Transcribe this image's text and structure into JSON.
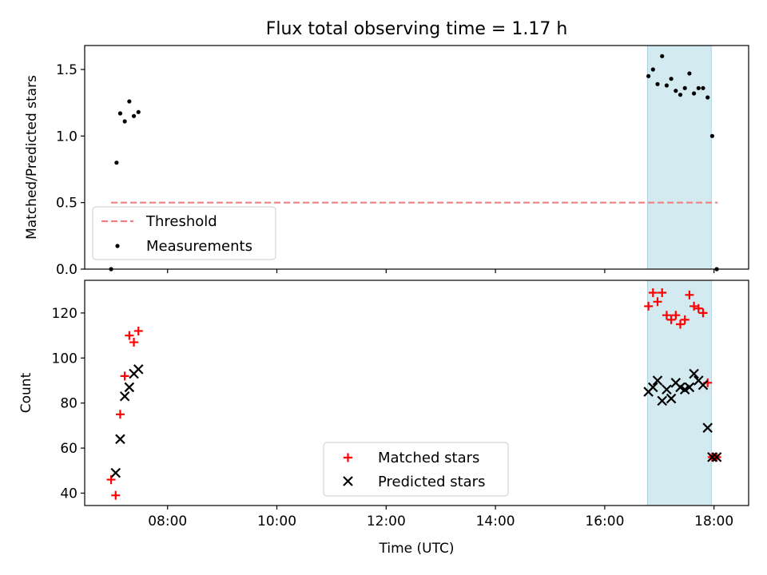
{
  "chart_data": [
    {
      "type": "scatter",
      "title": "Flux total observing time = 1.17 h",
      "xlabel": "",
      "ylabel": "Matched/Predicted stars",
      "xlim": [
        "06:29",
        "18:38"
      ],
      "ylim": [
        0,
        1.68
      ],
      "yticks": [
        0.0,
        0.5,
        1.0,
        1.5
      ],
      "ytick_labels": [
        "0.0",
        "0.5",
        "1.0",
        "1.5"
      ],
      "legend_position": "bottom-left",
      "grid": false,
      "highlight_band": {
        "x_start": "16:47",
        "x_end": "17:57",
        "color": "#d3eaf1"
      },
      "threshold": {
        "name": "Threshold",
        "y": 0.5,
        "x_start": "06:58",
        "x_end": "18:04",
        "color": "#f08080",
        "style": "dashed"
      },
      "series": [
        {
          "name": "Measurements",
          "marker": "dot",
          "color": "#000000",
          "points": [
            {
              "x": "06:58",
              "y": 0.0
            },
            {
              "x": "07:04",
              "y": 0.8
            },
            {
              "x": "07:08",
              "y": 1.17
            },
            {
              "x": "07:13",
              "y": 1.11
            },
            {
              "x": "07:18",
              "y": 1.26
            },
            {
              "x": "07:23",
              "y": 1.15
            },
            {
              "x": "07:28",
              "y": 1.18
            },
            {
              "x": "16:48",
              "y": 1.45
            },
            {
              "x": "16:53",
              "y": 1.5
            },
            {
              "x": "16:58",
              "y": 1.39
            },
            {
              "x": "17:03",
              "y": 1.6
            },
            {
              "x": "17:08",
              "y": 1.38
            },
            {
              "x": "17:13",
              "y": 1.43
            },
            {
              "x": "17:18",
              "y": 1.34
            },
            {
              "x": "17:23",
              "y": 1.31
            },
            {
              "x": "17:28",
              "y": 1.36
            },
            {
              "x": "17:33",
              "y": 1.47
            },
            {
              "x": "17:38",
              "y": 1.32
            },
            {
              "x": "17:43",
              "y": 1.36
            },
            {
              "x": "17:48",
              "y": 1.36
            },
            {
              "x": "17:53",
              "y": 1.29
            },
            {
              "x": "17:58",
              "y": 1.0
            },
            {
              "x": "18:03",
              "y": 0.0
            }
          ]
        }
      ],
      "legend": [
        "Threshold",
        "Measurements"
      ]
    },
    {
      "type": "scatter",
      "title": "",
      "xlabel": "Time (UTC)",
      "ylabel": "Count",
      "xlim": [
        "06:29",
        "18:38"
      ],
      "ylim": [
        34.5,
        134.5
      ],
      "yticks": [
        40,
        60,
        80,
        100,
        120
      ],
      "ytick_labels": [
        "40",
        "60",
        "80",
        "100",
        "120"
      ],
      "xticks": [
        "08:00",
        "10:00",
        "12:00",
        "14:00",
        "16:00",
        "18:00"
      ],
      "xtick_labels": [
        "08:00",
        "10:00",
        "12:00",
        "14:00",
        "16:00",
        "18:00"
      ],
      "legend_position": "lower-center",
      "grid": false,
      "highlight_band": {
        "x_start": "16:47",
        "x_end": "17:57",
        "color": "#d3eaf1"
      },
      "series": [
        {
          "name": "Matched stars",
          "marker": "plus",
          "color": "#ff0000",
          "points": [
            {
              "x": "06:58",
              "y": 46
            },
            {
              "x": "07:03",
              "y": 39
            },
            {
              "x": "07:08",
              "y": 75
            },
            {
              "x": "07:13",
              "y": 92
            },
            {
              "x": "07:18",
              "y": 110
            },
            {
              "x": "07:23",
              "y": 107
            },
            {
              "x": "07:28",
              "y": 112
            },
            {
              "x": "16:48",
              "y": 123
            },
            {
              "x": "16:53",
              "y": 129
            },
            {
              "x": "16:58",
              "y": 125
            },
            {
              "x": "17:03",
              "y": 129
            },
            {
              "x": "17:08",
              "y": 119
            },
            {
              "x": "17:13",
              "y": 117
            },
            {
              "x": "17:18",
              "y": 119
            },
            {
              "x": "17:23",
              "y": 115
            },
            {
              "x": "17:28",
              "y": 117
            },
            {
              "x": "17:33",
              "y": 128
            },
            {
              "x": "17:38",
              "y": 123
            },
            {
              "x": "17:43",
              "y": 122
            },
            {
              "x": "17:48",
              "y": 120
            },
            {
              "x": "17:53",
              "y": 89
            },
            {
              "x": "17:58",
              "y": 56
            },
            {
              "x": "18:03",
              "y": 56
            }
          ]
        },
        {
          "name": "Predicted stars",
          "marker": "x",
          "color": "#000000",
          "points": [
            {
              "x": "07:03",
              "y": 49
            },
            {
              "x": "07:08",
              "y": 64
            },
            {
              "x": "07:13",
              "y": 83
            },
            {
              "x": "07:18",
              "y": 87
            },
            {
              "x": "07:23",
              "y": 93
            },
            {
              "x": "07:28",
              "y": 95
            },
            {
              "x": "16:48",
              "y": 85
            },
            {
              "x": "16:53",
              "y": 87
            },
            {
              "x": "16:58",
              "y": 90
            },
            {
              "x": "17:03",
              "y": 81
            },
            {
              "x": "17:08",
              "y": 86
            },
            {
              "x": "17:13",
              "y": 82
            },
            {
              "x": "17:18",
              "y": 89
            },
            {
              "x": "17:23",
              "y": 87
            },
            {
              "x": "17:28",
              "y": 86
            },
            {
              "x": "17:33",
              "y": 87
            },
            {
              "x": "17:38",
              "y": 93
            },
            {
              "x": "17:43",
              "y": 90
            },
            {
              "x": "17:48",
              "y": 88
            },
            {
              "x": "17:53",
              "y": 69
            },
            {
              "x": "17:58",
              "y": 56
            },
            {
              "x": "18:03",
              "y": 56
            }
          ]
        }
      ],
      "legend": [
        "Matched stars",
        "Predicted stars"
      ]
    }
  ]
}
